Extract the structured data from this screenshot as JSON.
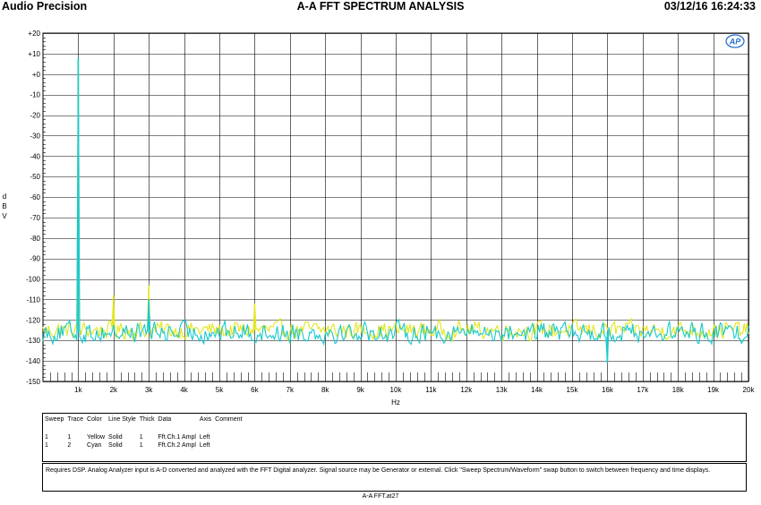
{
  "header": {
    "brand": "Audio Precision",
    "title": "A-A FFT SPECTRUM ANALYSIS",
    "timestamp": "03/12/16 16:24:33"
  },
  "chart_data": {
    "type": "line",
    "title": "A-A FFT SPECTRUM ANALYSIS",
    "xlabel": "Hz",
    "ylabel": "d B V",
    "xlim": [
      0,
      20000
    ],
    "ylim": [
      -150,
      20
    ],
    "grid": true,
    "x_ticks": [
      "1k",
      "2k",
      "3k",
      "4k",
      "5k",
      "6k",
      "7k",
      "8k",
      "9k",
      "10k",
      "11k",
      "12k",
      "13k",
      "14k",
      "15k",
      "16k",
      "17k",
      "18k",
      "19k",
      "20k"
    ],
    "y_ticks": [
      "+20",
      "+10",
      "+0",
      "-10",
      "-20",
      "-30",
      "-40",
      "-50",
      "-60",
      "-70",
      "-80",
      "-90",
      "-100",
      "-110",
      "-120",
      "-130",
      "-140",
      "-150"
    ],
    "series": [
      {
        "color": "#e3e61c",
        "noise_floor_dbv": -125,
        "noise_range_dbv": [
          -137,
          -117
        ],
        "x": [
          1000,
          2000,
          3000,
          6000
        ],
        "y": [
          8,
          -108,
          -103,
          -112
        ]
      },
      {
        "color": "#19c9cf",
        "noise_floor_dbv": -126,
        "noise_range_dbv": [
          -141,
          -118
        ],
        "x": [
          1000,
          3000,
          16000
        ],
        "y": [
          8,
          -110,
          -141
        ]
      }
    ]
  },
  "legend": {
    "headers": [
      "Sweep",
      "Trace",
      "Color",
      "Line Style",
      "Thick",
      "Data",
      "Axis",
      "Comment"
    ],
    "rows": [
      {
        "sweep": "1",
        "trace": "1",
        "color": "Yellow",
        "style": "Solid",
        "thick": "1",
        "data": "Fft.Ch.1 Ampl",
        "axis": "Left",
        "comment": ""
      },
      {
        "sweep": "1",
        "trace": "2",
        "color": "Cyan",
        "style": "Solid",
        "thick": "1",
        "data": "Fft.Ch.2 Ampl",
        "axis": "Left",
        "comment": ""
      }
    ]
  },
  "note": "Requires DSP.  Analog Analyzer input is A-D converted and analyzed with the FFT Digital analyzer.  Signal source may be Generator or external.  Click \"Sweep Spectrum/Waveform\" swap button to switch between frequency and time displays.",
  "filename": "A-A FFT.at27",
  "logo_text": "AP"
}
